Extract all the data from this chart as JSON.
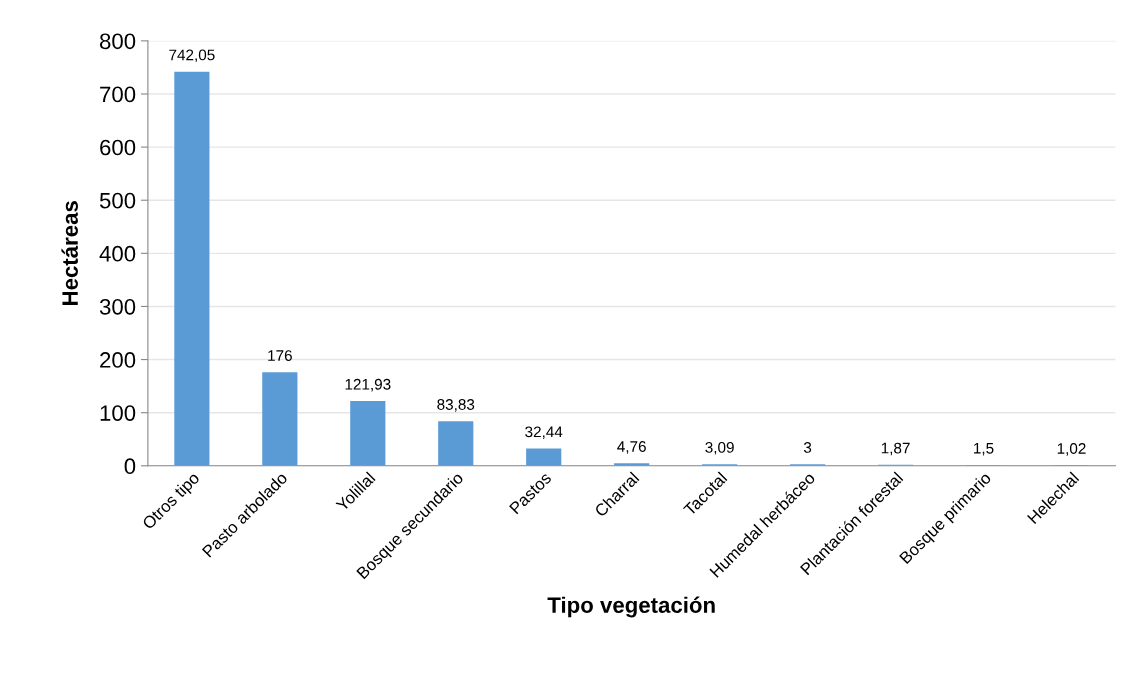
{
  "chart_data": {
    "type": "bar",
    "xlabel": "Tipo vegetación",
    "ylabel": "Hectáreas",
    "categories": [
      "Otros tipo",
      "Pasto arbolado",
      "Yolillal",
      "Bosque secundario",
      "Pastos",
      "Charral",
      "Tacotal",
      "Humedal herbáceo",
      "Plantación forestal",
      "Bosque primario",
      "Helechal"
    ],
    "values": [
      742.05,
      176,
      121.93,
      83.83,
      32.44,
      4.76,
      3.09,
      3,
      1.87,
      1.5,
      1.02
    ],
    "value_labels": [
      "742,05",
      "176",
      "121,93",
      "83,83",
      "32,44",
      "4,76",
      "3,09",
      "3",
      "1,87",
      "1,5",
      "1,02"
    ],
    "color": "#5b9bd5",
    "ylim": [
      0,
      800
    ],
    "yticks": [
      0,
      100,
      200,
      300,
      400,
      500,
      600,
      700,
      800
    ],
    "grid": "y",
    "legend": false
  }
}
